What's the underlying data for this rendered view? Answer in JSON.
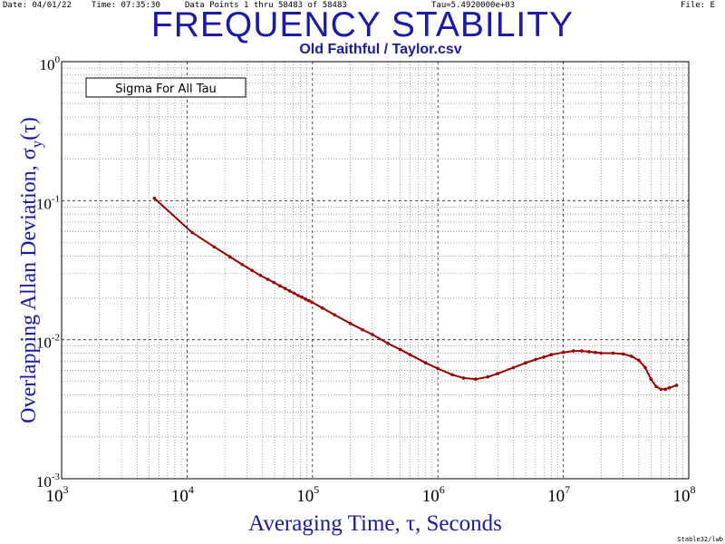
{
  "header": {
    "date": "Date: 04/01/22",
    "time": "Time: 07:35:30",
    "points": "Data Points 1 thru 58483 of 58483",
    "tau": "Tau=5.4920000e+03",
    "file": "File: E"
  },
  "footer": "Stable32/lwb",
  "colors": {
    "title": "#1a1aa6",
    "curve": "#990000",
    "grid": "#000000"
  },
  "chart_data": {
    "type": "line",
    "title": "FREQUENCY STABILITY",
    "subtitle": "Old Faithful / Taylor.csv",
    "annotation": "Sigma For All Tau",
    "xlabel": "Averaging Time, τ, Seconds",
    "ylabel_main": "Overlapping Allan Deviation, σ",
    "ylabel_sub": "y",
    "ylabel_tail": "(τ)",
    "x_scale": "log",
    "y_scale": "log",
    "xlim": [
      1000,
      100000000
    ],
    "ylim": [
      0.001,
      1
    ],
    "x_ticks": [
      {
        "value": 1000,
        "base": "10",
        "exp": "3"
      },
      {
        "value": 10000,
        "base": "10",
        "exp": "4"
      },
      {
        "value": 100000,
        "base": "10",
        "exp": "5"
      },
      {
        "value": 1000000,
        "base": "10",
        "exp": "6"
      },
      {
        "value": 10000000,
        "base": "10",
        "exp": "7"
      },
      {
        "value": 100000000,
        "base": "10",
        "exp": "8"
      }
    ],
    "y_ticks": [
      {
        "value": 1,
        "base": "10",
        "exp": "0"
      },
      {
        "value": 0.1,
        "base": "10",
        "exp": "-1"
      },
      {
        "value": 0.01,
        "base": "10",
        "exp": "-2"
      },
      {
        "value": 0.001,
        "base": "10",
        "exp": "-3"
      }
    ],
    "grid": true,
    "series": [
      {
        "x": [
          5492,
          10984,
          16476,
          21968,
          27460,
          32952,
          38444,
          43936,
          49428,
          54920,
          60412,
          65904,
          71396,
          76888,
          82380,
          87872,
          93364,
          98856,
          120000,
          150000,
          200000,
          250000,
          300000,
          400000,
          500000,
          600000,
          800000,
          1000000,
          1300000,
          1600000,
          2000000,
          2500000,
          3000000,
          4000000,
          5000000,
          6000000,
          7000000,
          8000000,
          10000000,
          12000000,
          14000000,
          16000000,
          18000000,
          20000000,
          25000000,
          30000000,
          35000000,
          40000000,
          45000000,
          50000000,
          55000000,
          60000000,
          65000000,
          70000000,
          80000000
        ],
        "y": [
          0.104,
          0.059,
          0.0465,
          0.0395,
          0.0348,
          0.0315,
          0.029,
          0.0272,
          0.0258,
          0.0244,
          0.0234,
          0.0224,
          0.0216,
          0.0208,
          0.0202,
          0.0196,
          0.0191,
          0.0186,
          0.0169,
          0.0151,
          0.0131,
          0.0118,
          0.0109,
          0.0094,
          0.0085,
          0.0078,
          0.0068,
          0.0062,
          0.0056,
          0.0053,
          0.0052,
          0.0054,
          0.0057,
          0.0063,
          0.0068,
          0.0072,
          0.0075,
          0.0078,
          0.0081,
          0.0083,
          0.0083,
          0.0082,
          0.0081,
          0.008,
          0.008,
          0.0079,
          0.0076,
          0.0071,
          0.0063,
          0.0052,
          0.0046,
          0.0044,
          0.0044,
          0.0045,
          0.0047
        ]
      }
    ]
  }
}
